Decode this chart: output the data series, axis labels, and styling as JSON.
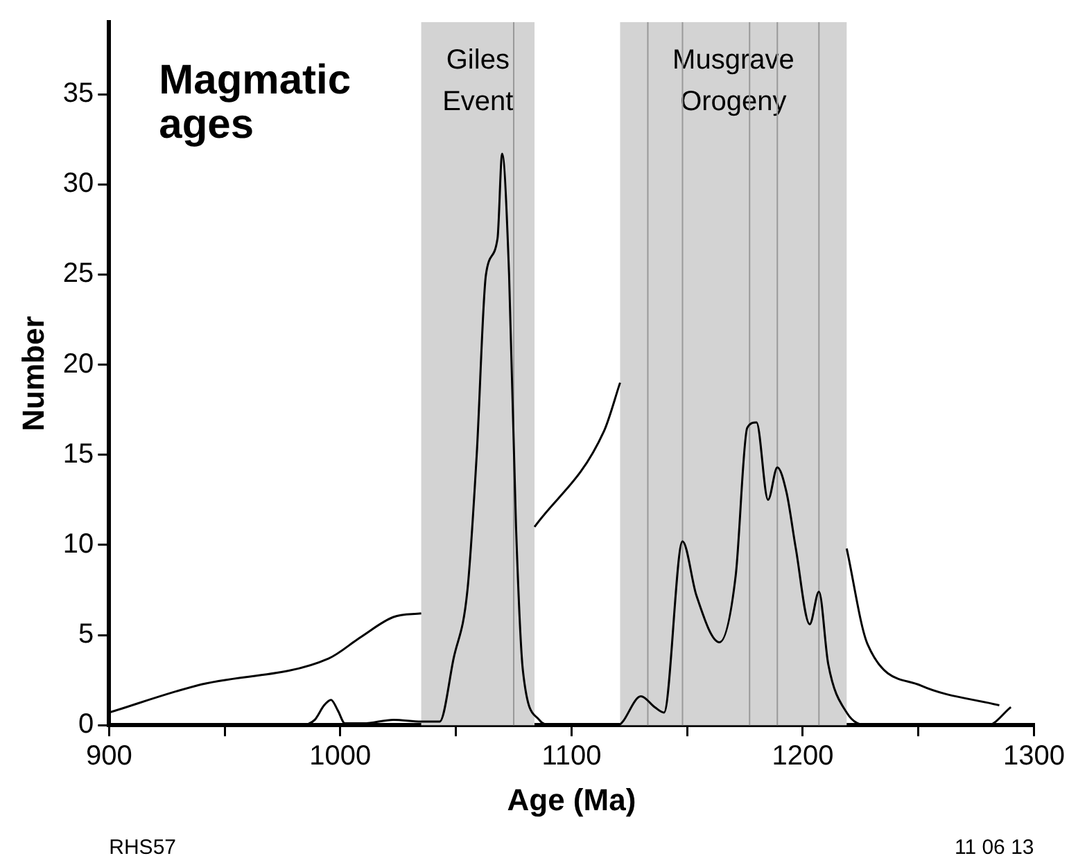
{
  "chart_data": {
    "type": "line",
    "title": "Magmatic ages",
    "xlabel": "Age (Ma)",
    "ylabel": "Number",
    "xlim": [
      900,
      1300
    ],
    "ylim": [
      0,
      39
    ],
    "xticks": [
      900,
      {
        "value": 950,
        "label": null
      },
      1000,
      {
        "value": 1050,
        "label": null
      },
      1100,
      {
        "value": 1150,
        "label": null
      },
      1200,
      {
        "value": 1250,
        "label": null
      },
      1300
    ],
    "yticks": [
      0,
      5,
      10,
      15,
      20,
      25,
      30,
      35
    ],
    "grid": false,
    "legend": false,
    "marker": "none",
    "line_style": "solid",
    "series": [
      {
        "color": "#000000",
        "x": [
          900,
          938,
          995,
          1009,
          1023,
          1035,
          1036,
          1083,
          1084,
          1114,
          1121,
          1122,
          1218,
          1219,
          1228,
          1251,
          1285
        ],
        "values": [
          0.7,
          2.2,
          3.7,
          4.9,
          6,
          6.2,
          null,
          null,
          11,
          16.3,
          19,
          null,
          null,
          9.8,
          4.5,
          2.2,
          1.1
        ]
      },
      {
        "color": "#000000",
        "x": [
          985,
          989,
          993,
          996,
          999,
          1002,
          1010,
          1023,
          1035,
          1043,
          1049,
          1055,
          1059,
          1063,
          1068,
          1070,
          1073,
          1076,
          1079,
          1086,
          1091,
          1120,
          1130,
          1136,
          1140,
          1148,
          1154,
          1164,
          1171,
          1176,
          1180,
          1185,
          1189,
          1193,
          1197,
          1203,
          1207,
          1211,
          1219,
          1228,
          1280,
          1290
        ],
        "values": [
          0,
          0.3,
          1.1,
          1.4,
          0.8,
          0.1,
          0.1,
          0.3,
          0.2,
          0.2,
          3.7,
          7.5,
          15,
          25,
          27,
          31.7,
          25,
          11,
          3,
          0.3,
          0,
          0,
          1.6,
          1,
          0.7,
          10.2,
          7.2,
          4.6,
          8.3,
          16.5,
          16.8,
          12.5,
          14.3,
          12.9,
          9.8,
          5.6,
          7.4,
          3.4,
          0.7,
          0,
          0,
          1
        ]
      }
    ],
    "bands": [
      {
        "axis": "x",
        "from": 1035,
        "to": 1084,
        "label": "Giles Event",
        "color": "#d3d3d3"
      },
      {
        "axis": "x",
        "from": 1121,
        "to": 1219,
        "label": "Musgrave Orogeny",
        "color": "#d3d3d3"
      }
    ],
    "ref_lines": [
      {
        "axis": "x",
        "value": 1075,
        "color": "#999999"
      },
      {
        "axis": "x",
        "value": 1133,
        "color": "#999999"
      },
      {
        "axis": "x",
        "value": 1148,
        "color": "#999999"
      },
      {
        "axis": "x",
        "value": 1177,
        "color": "#999999"
      },
      {
        "axis": "x",
        "value": 1189,
        "color": "#999999"
      },
      {
        "axis": "x",
        "value": 1207,
        "color": "#999999"
      }
    ],
    "annotations": [
      "RHS57",
      "11 06 13"
    ]
  }
}
